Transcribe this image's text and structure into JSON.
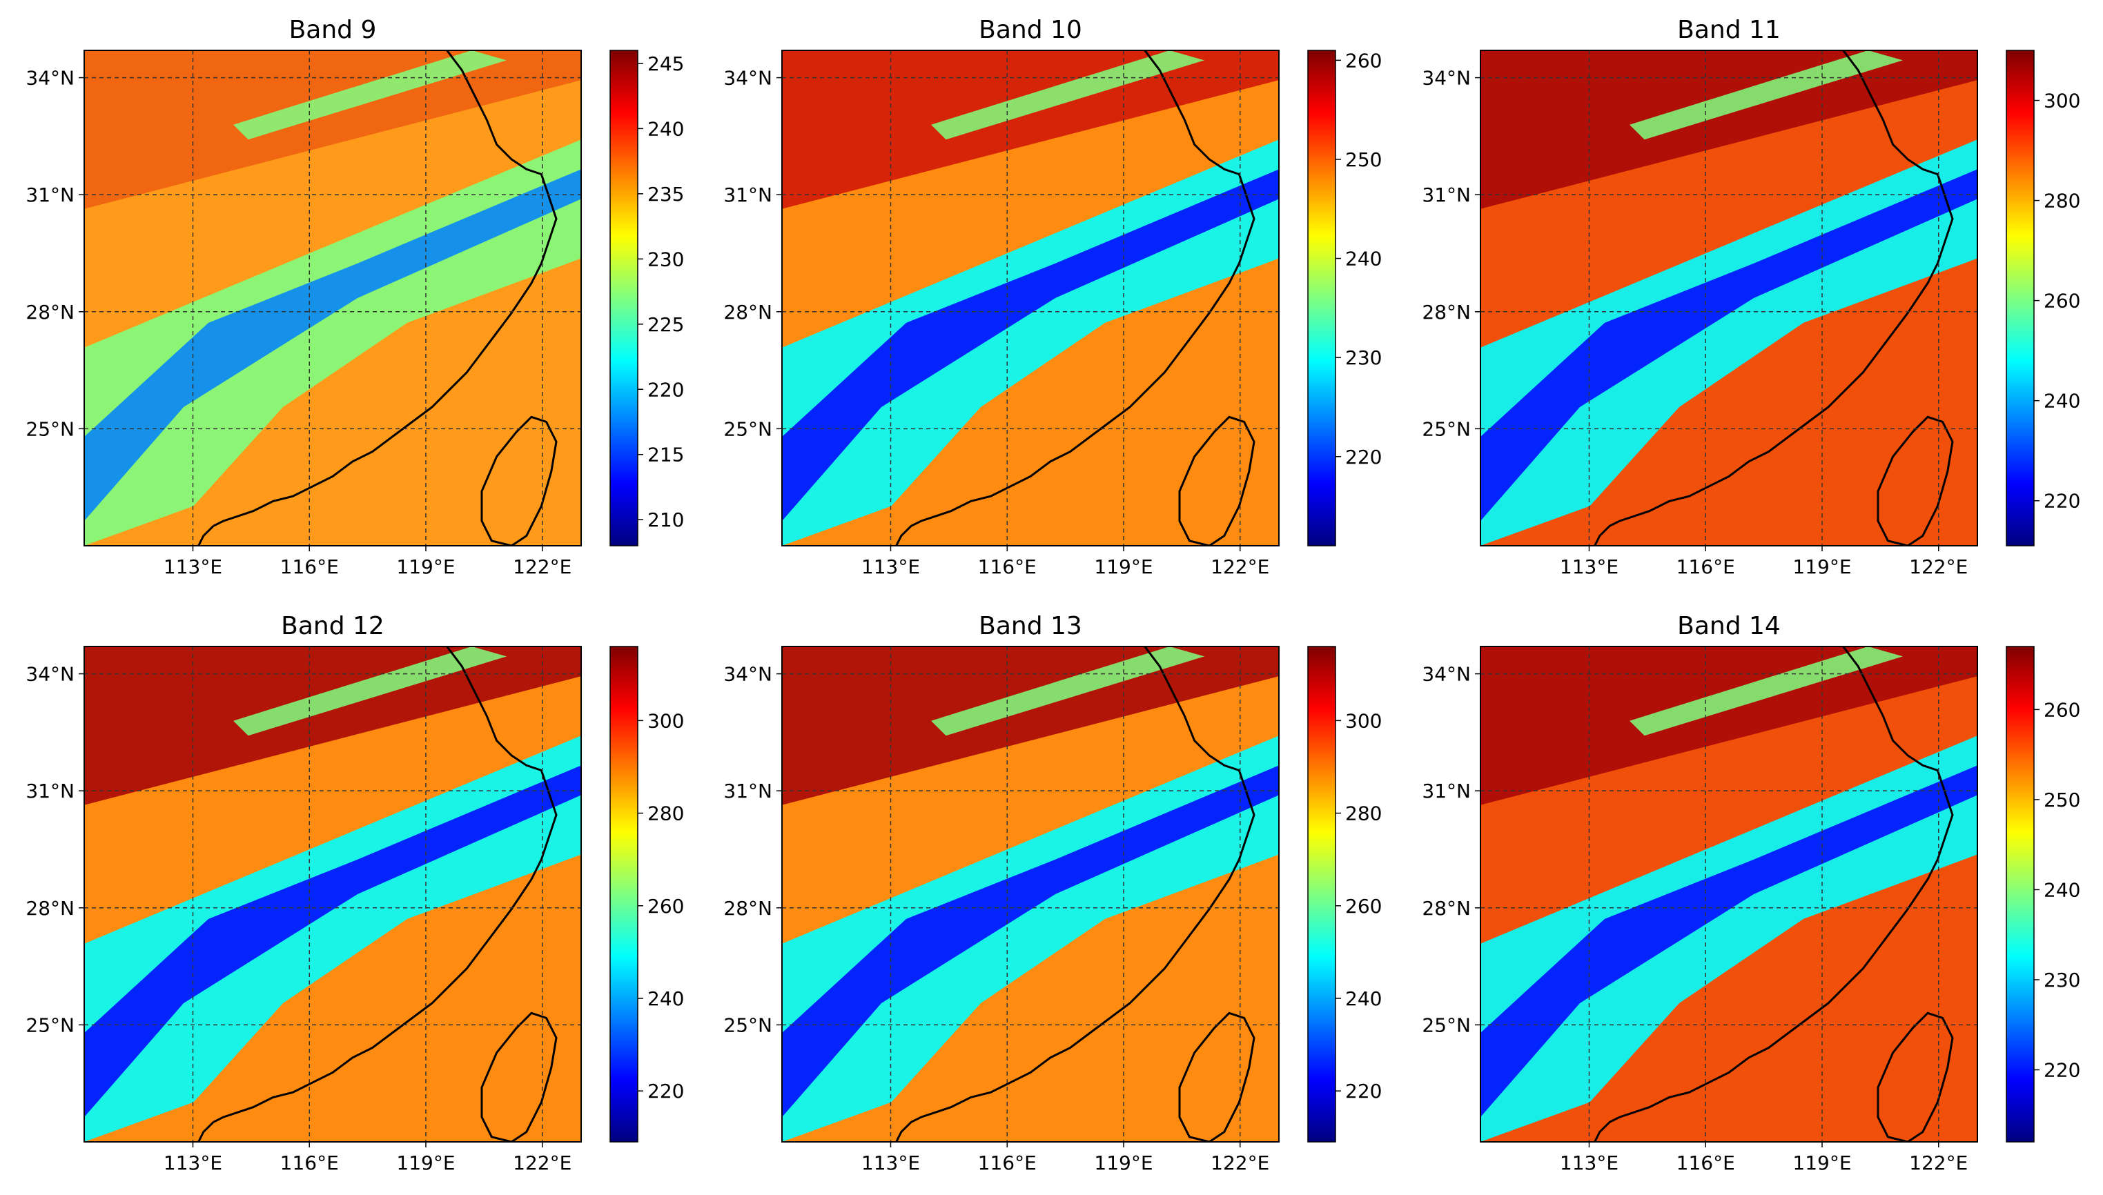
{
  "figure": {
    "lon_ticks": [
      "113°E",
      "116°E",
      "119°E",
      "122°E"
    ],
    "lat_ticks": [
      "34°N",
      "31°N",
      "28°N",
      "25°N"
    ],
    "lon_tick_values": [
      113,
      116,
      119,
      122
    ],
    "lat_tick_values": [
      34,
      31,
      28,
      25
    ],
    "map_extent": {
      "lon": [
        110.2,
        123.0
      ],
      "lat": [
        22.0,
        34.7
      ]
    },
    "colormap": "jet",
    "jet_colors": [
      "#00007f",
      "#0000ff",
      "#007fff",
      "#00ffff",
      "#7fff7f",
      "#ffff00",
      "#ff7f00",
      "#ff0000",
      "#7f0000"
    ],
    "coastline_color": "#000000",
    "grid": "dashed",
    "grid_color": "#333333"
  },
  "chart_data": [
    {
      "type": "heatmap",
      "title": "Band 9",
      "colorbar_range": [
        208,
        246
      ],
      "colorbar_ticks": [
        210,
        215,
        220,
        225,
        230,
        235,
        240,
        245
      ]
    },
    {
      "type": "heatmap",
      "title": "Band 10",
      "colorbar_range": [
        211,
        261
      ],
      "colorbar_ticks": [
        220,
        230,
        240,
        250,
        260
      ]
    },
    {
      "type": "heatmap",
      "title": "Band 11",
      "colorbar_range": [
        211,
        310
      ],
      "colorbar_ticks": [
        220,
        240,
        260,
        280,
        300
      ]
    },
    {
      "type": "heatmap",
      "title": "Band 12",
      "colorbar_range": [
        209,
        316
      ],
      "colorbar_ticks": [
        220,
        240,
        260,
        280,
        300
      ]
    },
    {
      "type": "heatmap",
      "title": "Band 13",
      "colorbar_range": [
        209,
        316
      ],
      "colorbar_ticks": [
        220,
        240,
        260,
        280,
        300
      ]
    },
    {
      "type": "heatmap",
      "title": "Band 14",
      "colorbar_range": [
        212,
        267
      ],
      "colorbar_ticks": [
        220,
        230,
        240,
        250,
        260
      ]
    }
  ]
}
